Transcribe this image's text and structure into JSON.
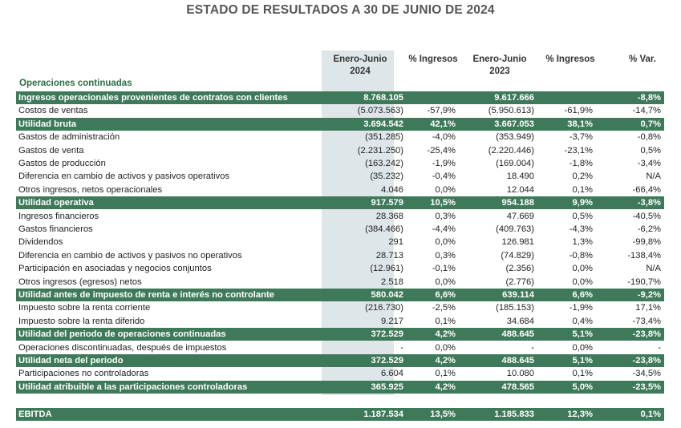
{
  "title": "ESTADO DE RESULTADOS A 30 DE JUNIO DE 2024",
  "headers": {
    "col1": [
      "Enero-Junio",
      "2024"
    ],
    "col2": "% Ingresos",
    "col3": [
      "Enero-Junio",
      "2023"
    ],
    "col4": "% Ingresos",
    "col5": "% Var."
  },
  "section_label": "Operaciones continuadas",
  "rows": [
    {
      "label": "Ingresos operacionales provenientes de contratos con clientes",
      "v2024": "8.768.105",
      "p2024": "",
      "v2023": "9.617.666",
      "p2023": "",
      "var": "-8,8%",
      "highlight": true
    },
    {
      "label": "Costos de ventas",
      "v2024": "(5.073.563)",
      "p2024": "-57,9%",
      "v2023": "(5.950.613)",
      "p2023": "-61,9%",
      "var": "-14,7%",
      "highlight": false
    },
    {
      "label": "Utilidad bruta",
      "v2024": "3.694.542",
      "p2024": "42,1%",
      "v2023": "3.667.053",
      "p2023": "38,1%",
      "var": "0,7%",
      "highlight": true
    },
    {
      "label": "Gastos de administración",
      "v2024": "(351.285)",
      "p2024": "-4,0%",
      "v2023": "(353.949)",
      "p2023": "-3,7%",
      "var": "-0,8%",
      "highlight": false
    },
    {
      "label": "Gastos de venta",
      "v2024": "(2.231.250)",
      "p2024": "-25,4%",
      "v2023": "(2.220.446)",
      "p2023": "-23,1%",
      "var": "0,5%",
      "highlight": false
    },
    {
      "label": "Gastos de producción",
      "v2024": "(163.242)",
      "p2024": "-1,9%",
      "v2023": "(169.004)",
      "p2023": "-1,8%",
      "var": "-3,4%",
      "highlight": false
    },
    {
      "label": "Diferencia en cambio de activos y pasivos operativos",
      "v2024": "(35.232)",
      "p2024": "-0,4%",
      "v2023": "18.490",
      "p2023": "0,2%",
      "var": "N/A",
      "highlight": false
    },
    {
      "label": "Otros ingresos, netos operacionales",
      "v2024": "4.046",
      "p2024": "0,0%",
      "v2023": "12.044",
      "p2023": "0,1%",
      "var": "-66,4%",
      "highlight": false
    },
    {
      "label": "Utilidad operativa",
      "v2024": "917.579",
      "p2024": "10,5%",
      "v2023": "954.188",
      "p2023": "9,9%",
      "var": "-3,8%",
      "highlight": true
    },
    {
      "label": "Ingresos financieros",
      "v2024": "28.368",
      "p2024": "0,3%",
      "v2023": "47.669",
      "p2023": "0,5%",
      "var": "-40,5%",
      "highlight": false
    },
    {
      "label": "Gastos financieros",
      "v2024": "(384.466)",
      "p2024": "-4,4%",
      "v2023": "(409.763)",
      "p2023": "-4,3%",
      "var": "-6,2%",
      "highlight": false
    },
    {
      "label": "Dividendos",
      "v2024": "291",
      "p2024": "0,0%",
      "v2023": "126.981",
      "p2023": "1,3%",
      "var": "-99,8%",
      "highlight": false
    },
    {
      "label": "Diferencia en cambio de activos y pasivos no operativos",
      "v2024": "28.713",
      "p2024": "0,3%",
      "v2023": "(74.829)",
      "p2023": "-0,8%",
      "var": "-138,4%",
      "highlight": false
    },
    {
      "label": "Participación en asociadas y negocios conjuntos",
      "v2024": "(12.961)",
      "p2024": "-0,1%",
      "v2023": "(2.356)",
      "p2023": "0,0%",
      "var": "N/A",
      "highlight": false
    },
    {
      "label": "Otros ingresos (egresos) netos",
      "v2024": "2.518",
      "p2024": "0,0%",
      "v2023": "(2.776)",
      "p2023": "0,0%",
      "var": "-190,7%",
      "highlight": false
    },
    {
      "label": "Utilidad antes de impuesto de renta e interés no controlante",
      "v2024": "580.042",
      "p2024": "6,6%",
      "v2023": "639.114",
      "p2023": "6,6%",
      "var": "-9,2%",
      "highlight": true
    },
    {
      "label": "Impuesto sobre la renta corriente",
      "v2024": "(216.730)",
      "p2024": "-2,5%",
      "v2023": "(185.153)",
      "p2023": "-1,9%",
      "var": "17,1%",
      "highlight": false
    },
    {
      "label": "Impuesto sobre la renta diferido",
      "v2024": "9.217",
      "p2024": "0,1%",
      "v2023": "34.684",
      "p2023": "0,4%",
      "var": "-73,4%",
      "highlight": false
    },
    {
      "label": "Utilidad del periodo de operaciones continuadas",
      "v2024": "372.529",
      "p2024": "4,2%",
      "v2023": "488.645",
      "p2023": "5,1%",
      "var": "-23,8%",
      "highlight": true
    },
    {
      "label": "Operaciones discontinuadas, después de impuestos",
      "v2024": "-",
      "p2024": "0,0%",
      "v2023": "-",
      "p2023": "0,0%",
      "var": "-",
      "highlight": false
    },
    {
      "label": "Utilidad neta del periodo",
      "v2024": "372.529",
      "p2024": "4,2%",
      "v2023": "488.645",
      "p2023": "5,1%",
      "var": "-23,8%",
      "highlight": true
    },
    {
      "label": "Participaciones no controladoras",
      "v2024": "6.604",
      "p2024": "0,1%",
      "v2023": "10.080",
      "p2023": "0,1%",
      "var": "-34,5%",
      "highlight": false
    },
    {
      "label": "Utilidad atribuible a las participaciones controladoras",
      "v2024": "365.925",
      "p2024": "4,2%",
      "v2023": "478.565",
      "p2023": "5,0%",
      "var": "-23,5%",
      "highlight": true
    }
  ],
  "ebitda": {
    "label": "EBITDA",
    "v2024": "1.187.534",
    "p2024": "13,5%",
    "v2023": "1.185.833",
    "p2023": "12,3%",
    "var": "0,1%",
    "highlight": true
  },
  "colors": {
    "highlight_bg": "#3e7a5a",
    "shaded_column": "#dfe6e9",
    "section_text": "#2e6b47"
  }
}
